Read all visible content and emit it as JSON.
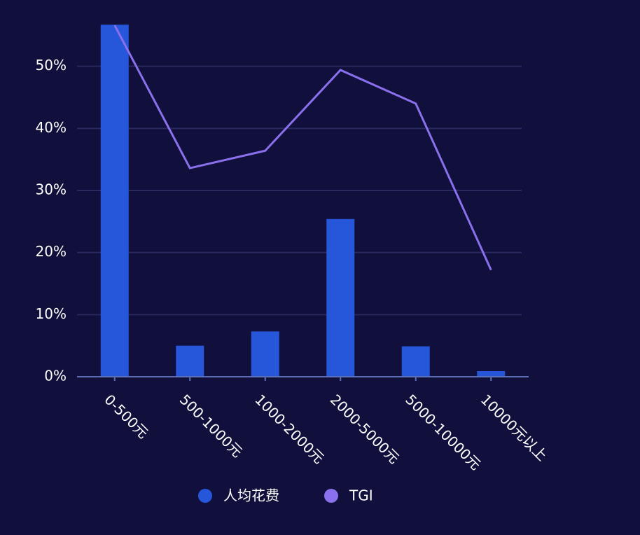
{
  "chart_data": {
    "type": "bar",
    "categories": [
      "0-500元",
      "500-1000元",
      "1000-2000元",
      "2000-5000元",
      "5000-10000元",
      "10000元以上"
    ],
    "series": [
      {
        "name": "人均花费",
        "color": "#2656d9",
        "values": [
          56.7,
          5.0,
          7.3,
          25.4,
          4.9,
          0.9
        ]
      },
      {
        "name": "TGI",
        "color": "#8a70ec",
        "axis": "y2",
        "type": "line",
        "values": [
          283,
          168,
          182,
          247,
          220,
          86
        ]
      }
    ],
    "ylim": [
      0,
      60
    ],
    "yticks": [
      {
        "value": 0,
        "label": "0%"
      },
      {
        "value": 10,
        "label": "10%"
      },
      {
        "value": 20,
        "label": "20%"
      },
      {
        "value": 30,
        "label": "30%"
      },
      {
        "value": 40,
        "label": "40%"
      },
      {
        "value": 50,
        "label": "50%"
      }
    ],
    "y2lim": [
      0,
      300
    ],
    "grid": true
  }
}
